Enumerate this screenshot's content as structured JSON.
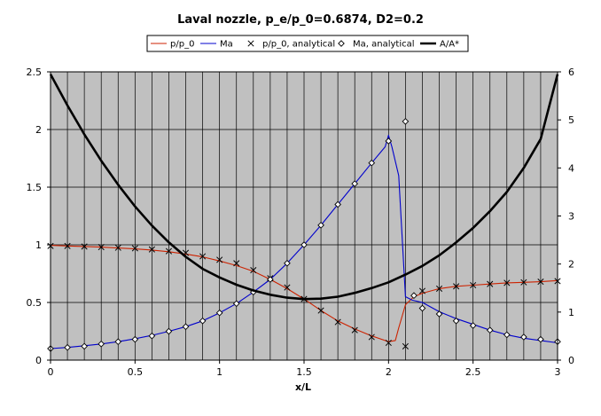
{
  "chart_data": {
    "type": "line",
    "title": "Laval nozzle, p_e/p_0=0.6874, D2=0.2",
    "xlabel": "x/L",
    "ylabel": "",
    "xlim": [
      0,
      3
    ],
    "ylim": [
      0,
      2.5
    ],
    "y2lim": [
      0,
      6
    ],
    "x_ticks": [
      "0",
      "0.5",
      "1",
      "1.5",
      "2",
      "2.5",
      "3"
    ],
    "y_ticks": [
      "0",
      "0.5",
      "1",
      "1.5",
      "2",
      "2.5"
    ],
    "y2_ticks": [
      "0",
      "1",
      "2",
      "3",
      "4",
      "5",
      "6"
    ],
    "grid": true,
    "plot_background": "#c0c0c0",
    "legend_position": "top",
    "series": [
      {
        "name": "p/p_0",
        "kind": "line",
        "axis": "left",
        "color": "#cc2200",
        "x": [
          0,
          0.1,
          0.2,
          0.3,
          0.4,
          0.5,
          0.6,
          0.7,
          0.8,
          0.9,
          1.0,
          1.1,
          1.2,
          1.3,
          1.4,
          1.5,
          1.6,
          1.7,
          1.8,
          1.9,
          2.0,
          2.04,
          2.06,
          2.1,
          2.15,
          2.2,
          2.3,
          2.4,
          2.5,
          2.6,
          2.7,
          2.8,
          2.9,
          3.0
        ],
        "y": [
          0.995,
          0.99,
          0.985,
          0.98,
          0.972,
          0.965,
          0.955,
          0.94,
          0.92,
          0.895,
          0.86,
          0.82,
          0.77,
          0.7,
          0.62,
          0.53,
          0.43,
          0.34,
          0.27,
          0.21,
          0.16,
          0.17,
          0.28,
          0.48,
          0.55,
          0.58,
          0.62,
          0.64,
          0.65,
          0.66,
          0.67,
          0.675,
          0.68,
          0.69
        ]
      },
      {
        "name": "Ma",
        "kind": "line",
        "axis": "left",
        "color": "#0000cc",
        "x": [
          0,
          0.1,
          0.2,
          0.3,
          0.4,
          0.5,
          0.6,
          0.7,
          0.8,
          0.9,
          1.0,
          1.1,
          1.2,
          1.3,
          1.4,
          1.5,
          1.6,
          1.7,
          1.8,
          1.9,
          1.98,
          2.0,
          2.02,
          2.06,
          2.1,
          2.14,
          2.2,
          2.3,
          2.4,
          2.5,
          2.6,
          2.7,
          2.8,
          2.9,
          3.0
        ],
        "y": [
          0.1,
          0.11,
          0.125,
          0.14,
          0.16,
          0.185,
          0.215,
          0.25,
          0.29,
          0.34,
          0.41,
          0.49,
          0.59,
          0.7,
          0.84,
          1.0,
          1.17,
          1.35,
          1.53,
          1.71,
          1.85,
          1.95,
          1.85,
          1.6,
          0.55,
          0.52,
          0.5,
          0.42,
          0.36,
          0.31,
          0.26,
          0.22,
          0.19,
          0.17,
          0.15
        ]
      },
      {
        "name": "p/p_0, analytical",
        "kind": "marker-x",
        "axis": "left",
        "color": "#000000",
        "x": [
          0,
          0.1,
          0.2,
          0.3,
          0.4,
          0.5,
          0.6,
          0.7,
          0.8,
          0.9,
          1.0,
          1.1,
          1.2,
          1.3,
          1.4,
          1.5,
          1.6,
          1.7,
          1.8,
          1.9,
          2.0,
          2.1,
          2.2,
          2.3,
          2.4,
          2.5,
          2.6,
          2.7,
          2.8,
          2.9,
          3.0
        ],
        "y": [
          0.99,
          0.99,
          0.985,
          0.98,
          0.975,
          0.97,
          0.96,
          0.945,
          0.93,
          0.9,
          0.87,
          0.84,
          0.78,
          0.71,
          0.63,
          0.53,
          0.43,
          0.33,
          0.26,
          0.2,
          0.15,
          0.12,
          0.6,
          0.62,
          0.64,
          0.65,
          0.66,
          0.67,
          0.675,
          0.68,
          0.685
        ]
      },
      {
        "name": "Ma, analytical",
        "kind": "marker-diamond",
        "axis": "left",
        "color": "#000000",
        "x": [
          0,
          0.1,
          0.2,
          0.3,
          0.4,
          0.5,
          0.6,
          0.7,
          0.8,
          0.9,
          1.0,
          1.1,
          1.2,
          1.3,
          1.4,
          1.5,
          1.6,
          1.7,
          1.8,
          1.9,
          2.0,
          2.1,
          2.15,
          2.2,
          2.3,
          2.4,
          2.5,
          2.6,
          2.7,
          2.8,
          2.9,
          3.0
        ],
        "y": [
          0.1,
          0.11,
          0.12,
          0.14,
          0.16,
          0.18,
          0.21,
          0.25,
          0.29,
          0.34,
          0.41,
          0.49,
          0.59,
          0.7,
          0.84,
          1.0,
          1.17,
          1.35,
          1.53,
          1.71,
          1.9,
          2.07,
          0.56,
          0.45,
          0.4,
          0.34,
          0.3,
          0.26,
          0.22,
          0.2,
          0.18,
          0.16
        ]
      },
      {
        "name": "A/A*",
        "kind": "line-thick",
        "axis": "right",
        "color": "#000000",
        "x": [
          0,
          0.1,
          0.2,
          0.3,
          0.4,
          0.5,
          0.6,
          0.7,
          0.8,
          0.9,
          1.0,
          1.1,
          1.2,
          1.3,
          1.4,
          1.5,
          1.6,
          1.7,
          1.8,
          1.9,
          2.0,
          2.1,
          2.2,
          2.3,
          2.4,
          2.5,
          2.6,
          2.7,
          2.8,
          2.9,
          3.0
        ],
        "y": [
          5.95,
          5.3,
          4.7,
          4.15,
          3.65,
          3.2,
          2.8,
          2.45,
          2.15,
          1.9,
          1.72,
          1.57,
          1.45,
          1.36,
          1.3,
          1.27,
          1.28,
          1.32,
          1.4,
          1.5,
          1.62,
          1.78,
          1.96,
          2.18,
          2.45,
          2.75,
          3.1,
          3.5,
          4.0,
          4.6,
          5.95
        ]
      }
    ]
  }
}
